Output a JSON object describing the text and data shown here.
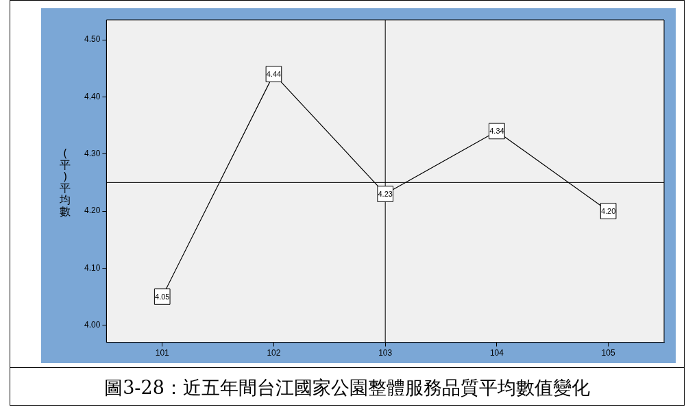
{
  "chart_data": {
    "type": "line",
    "ylabel": "(平)平均數",
    "categories": [
      "101",
      "102",
      "103",
      "104",
      "105"
    ],
    "series": [
      {
        "color": "#000000",
        "values": [
          4.05,
          4.44,
          4.23,
          4.34,
          4.2
        ],
        "value_labels": [
          "4.05",
          "4.44",
          "4.23",
          "4.34",
          "4.20"
        ]
      }
    ],
    "ylim": [
      3.97,
      4.535
    ],
    "yticks": [
      {
        "value": 4.0,
        "label": "4.00"
      },
      {
        "value": 4.1,
        "label": "4.10"
      },
      {
        "value": 4.2,
        "label": "4.20"
      },
      {
        "value": 4.3,
        "label": "4.30"
      },
      {
        "value": 4.4,
        "label": "4.40"
      },
      {
        "value": 4.5,
        "label": "4.50"
      }
    ],
    "ref_lines": [
      {
        "axis": "x",
        "value": "103",
        "color": "#000000"
      },
      {
        "axis": "y",
        "value": 4.25,
        "color": "#000000"
      }
    ],
    "annotations": [
      "圖3-28：近五年間台江國家公園整體服務品質平均數值變化"
    ],
    "marker": "square",
    "grid": false,
    "legend": false
  }
}
